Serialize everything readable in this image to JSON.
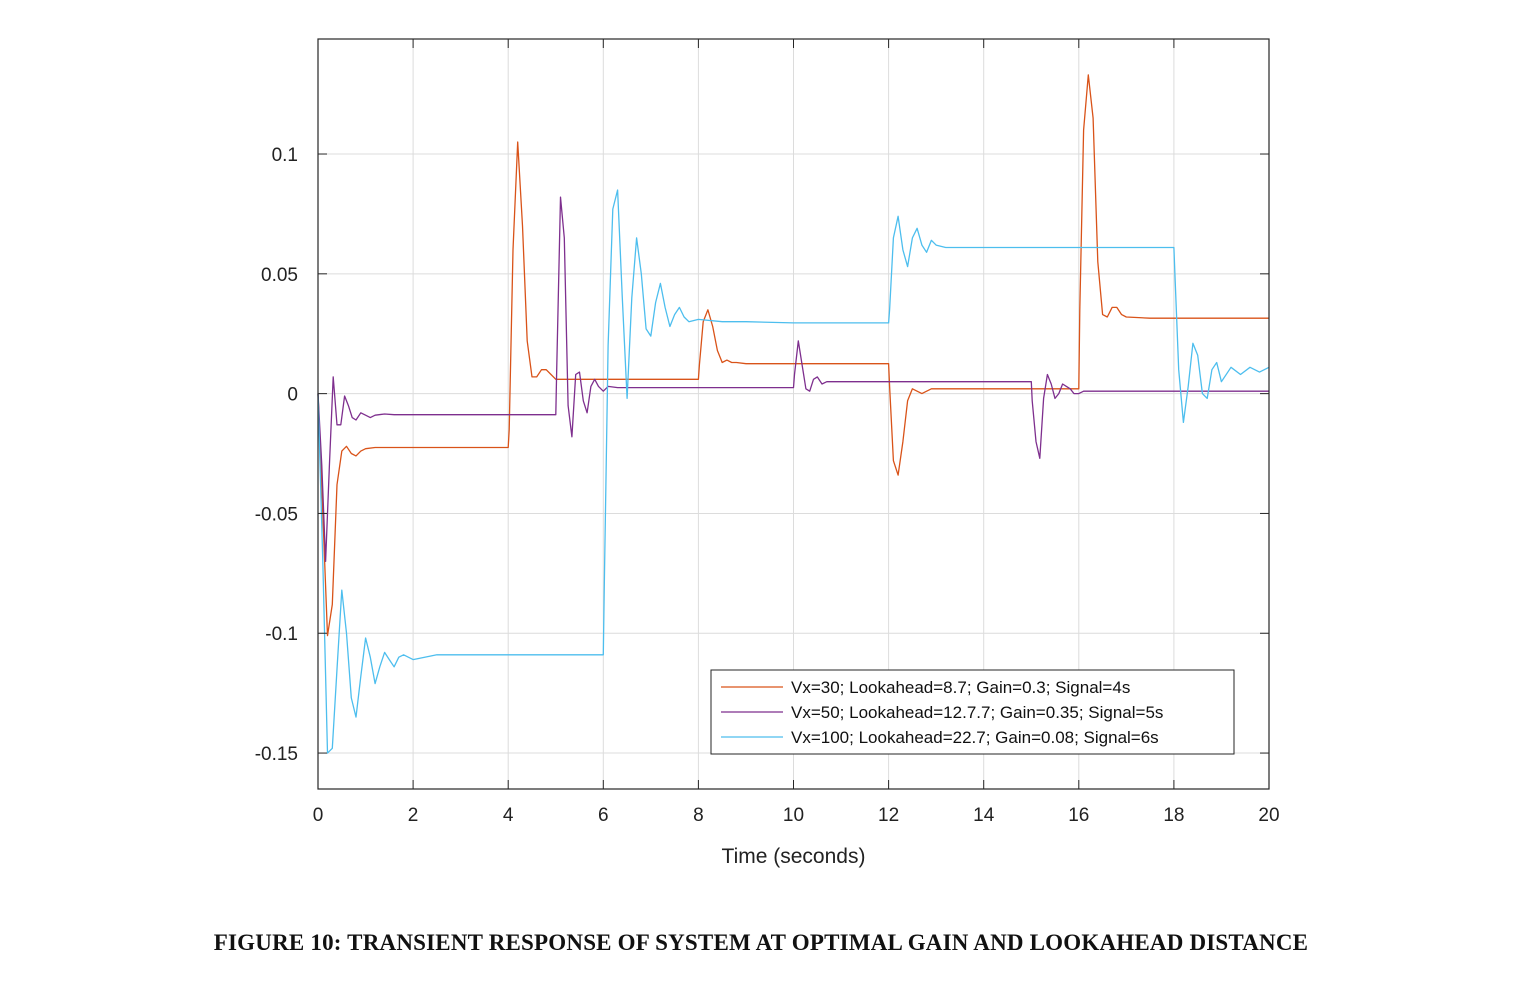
{
  "caption": "FIGURE 10: TRANSIENT RESPONSE OF SYSTEM AT OPTIMAL GAIN AND LOOKAHEAD DISTANCE",
  "chart_data": {
    "type": "line",
    "title": "",
    "xlabel": "Time (seconds)",
    "ylabel": "",
    "xlim": [
      0,
      20
    ],
    "ylim": [
      -0.165,
      0.148
    ],
    "xticks": [
      0,
      2,
      4,
      6,
      8,
      10,
      12,
      14,
      16,
      18,
      20
    ],
    "xtick_labels": [
      "0",
      "2",
      "4",
      "6",
      "8",
      "10",
      "12",
      "14",
      "16",
      "18",
      "20"
    ],
    "yticks": [
      -0.15,
      -0.1,
      -0.05,
      0,
      0.05,
      0.1
    ],
    "ytick_labels": [
      "-0.15",
      "-0.1",
      "-0.05",
      "0",
      "0.05",
      "0.1"
    ],
    "grid": true,
    "legend_position": "bottom-right",
    "series": [
      {
        "name": "Vx=30; Lookahead=8.7; Gain=0.3; Signal=4s",
        "color": "#D95319",
        "x": [
          0,
          0.1,
          0.2,
          0.3,
          0.4,
          0.5,
          0.6,
          0.7,
          0.8,
          0.9,
          1.0,
          1.2,
          1.5,
          2,
          3,
          4,
          4.02,
          4.1,
          4.2,
          4.3,
          4.4,
          4.5,
          4.6,
          4.7,
          4.8,
          4.9,
          5.0,
          5.2,
          5.5,
          6,
          7,
          8,
          8.02,
          8.1,
          8.2,
          8.3,
          8.4,
          8.5,
          8.6,
          8.7,
          8.8,
          9,
          9.5,
          10,
          11,
          12,
          12.02,
          12.1,
          12.2,
          12.3,
          12.4,
          12.5,
          12.6,
          12.7,
          12.8,
          12.9,
          13.0,
          13.5,
          14,
          15,
          16,
          16.02,
          16.1,
          16.2,
          16.3,
          16.4,
          16.5,
          16.6,
          16.7,
          16.8,
          16.9,
          17.0,
          17.5,
          18,
          19,
          20
        ],
        "y": [
          0,
          -0.05,
          -0.101,
          -0.088,
          -0.038,
          -0.024,
          -0.022,
          -0.025,
          -0.026,
          -0.024,
          -0.023,
          -0.0225,
          -0.0225,
          -0.0225,
          -0.0225,
          -0.0225,
          -0.015,
          0.06,
          0.105,
          0.07,
          0.022,
          0.007,
          0.007,
          0.01,
          0.01,
          0.008,
          0.006,
          0.006,
          0.006,
          0.006,
          0.006,
          0.006,
          0.012,
          0.03,
          0.035,
          0.028,
          0.018,
          0.013,
          0.014,
          0.013,
          0.013,
          0.0125,
          0.0125,
          0.0125,
          0.0125,
          0.0125,
          0.003,
          -0.028,
          -0.034,
          -0.02,
          -0.003,
          0.002,
          0.001,
          0,
          0.001,
          0.002,
          0.002,
          0.002,
          0.002,
          0.002,
          0.002,
          0.035,
          0.11,
          0.133,
          0.115,
          0.055,
          0.033,
          0.032,
          0.036,
          0.036,
          0.033,
          0.032,
          0.0315,
          0.0315,
          0.0315,
          0.0315
        ]
      },
      {
        "name": "Vx=50; Lookahead=12.7.7; Gain=0.35; Signal=5s",
        "color": "#7E2F8E",
        "x": [
          0,
          0.08,
          0.16,
          0.24,
          0.32,
          0.4,
          0.48,
          0.56,
          0.64,
          0.72,
          0.8,
          0.9,
          1.0,
          1.1,
          1.2,
          1.4,
          1.6,
          2,
          3,
          4,
          5,
          5.02,
          5.1,
          5.18,
          5.26,
          5.34,
          5.42,
          5.5,
          5.58,
          5.66,
          5.74,
          5.82,
          5.9,
          6.0,
          6.1,
          6.3,
          6.5,
          7,
          8,
          9,
          10,
          10.02,
          10.1,
          10.18,
          10.26,
          10.34,
          10.42,
          10.5,
          10.6,
          10.7,
          10.8,
          11,
          11.5,
          12,
          13,
          14,
          15,
          15.02,
          15.1,
          15.18,
          15.26,
          15.34,
          15.42,
          15.5,
          15.58,
          15.66,
          15.74,
          15.82,
          15.9,
          16.0,
          16.1,
          16.3,
          17,
          18,
          19,
          20
        ],
        "y": [
          0,
          -0.03,
          -0.07,
          -0.03,
          0.007,
          -0.013,
          -0.013,
          -0.001,
          -0.005,
          -0.01,
          -0.011,
          -0.008,
          -0.009,
          -0.01,
          -0.009,
          -0.0085,
          -0.0088,
          -0.0088,
          -0.0088,
          -0.0088,
          -0.0088,
          0.01,
          0.082,
          0.065,
          -0.005,
          -0.018,
          0.008,
          0.009,
          -0.003,
          -0.008,
          0.003,
          0.006,
          0.003,
          0.001,
          0.003,
          0.0025,
          0.0025,
          0.0025,
          0.0025,
          0.0025,
          0.0025,
          0.008,
          0.022,
          0.012,
          0.002,
          0.001,
          0.006,
          0.007,
          0.004,
          0.005,
          0.005,
          0.005,
          0.005,
          0.005,
          0.005,
          0.005,
          0.005,
          -0.003,
          -0.02,
          -0.027,
          -0.002,
          0.008,
          0.004,
          -0.002,
          0,
          0.004,
          0.003,
          0.002,
          0,
          0,
          0.001,
          0.001,
          0.001,
          0.001,
          0.001,
          0.001
        ]
      },
      {
        "name": "Vx=100; Lookahead=22.7; Gain=0.08; Signal=6s",
        "color": "#4DBEEE",
        "x": [
          0,
          0.1,
          0.2,
          0.3,
          0.4,
          0.5,
          0.6,
          0.7,
          0.8,
          0.9,
          1.0,
          1.1,
          1.2,
          1.3,
          1.4,
          1.5,
          1.6,
          1.7,
          1.8,
          2.0,
          2.5,
          3,
          4,
          5,
          6,
          6.02,
          6.1,
          6.2,
          6.3,
          6.4,
          6.5,
          6.6,
          6.7,
          6.8,
          6.9,
          7.0,
          7.1,
          7.2,
          7.3,
          7.4,
          7.5,
          7.6,
          7.7,
          7.8,
          8.0,
          8.5,
          9,
          10,
          11,
          12,
          12.02,
          12.1,
          12.2,
          12.3,
          12.4,
          12.5,
          12.6,
          12.7,
          12.8,
          12.9,
          13.0,
          13.2,
          13.5,
          14,
          15,
          16,
          17,
          18,
          18.02,
          18.1,
          18.2,
          18.3,
          18.4,
          18.5,
          18.6,
          18.7,
          18.8,
          18.9,
          19.0,
          19.2,
          19.4,
          19.6,
          19.8,
          20
        ],
        "y": [
          0,
          -0.07,
          -0.15,
          -0.148,
          -0.115,
          -0.082,
          -0.1,
          -0.127,
          -0.135,
          -0.118,
          -0.102,
          -0.11,
          -0.121,
          -0.114,
          -0.108,
          -0.111,
          -0.114,
          -0.11,
          -0.109,
          -0.111,
          -0.109,
          -0.109,
          -0.109,
          -0.109,
          -0.109,
          -0.08,
          0.02,
          0.077,
          0.085,
          0.04,
          -0.002,
          0.04,
          0.065,
          0.05,
          0.027,
          0.024,
          0.038,
          0.046,
          0.036,
          0.028,
          0.033,
          0.036,
          0.032,
          0.03,
          0.031,
          0.03,
          0.03,
          0.0295,
          0.0295,
          0.0295,
          0.035,
          0.065,
          0.074,
          0.06,
          0.053,
          0.065,
          0.069,
          0.062,
          0.059,
          0.064,
          0.062,
          0.061,
          0.061,
          0.061,
          0.061,
          0.061,
          0.061,
          0.061,
          0.05,
          0.01,
          -0.012,
          0.003,
          0.021,
          0.016,
          0,
          -0.002,
          0.01,
          0.013,
          0.005,
          0.011,
          0.008,
          0.011,
          0.009,
          0.011
        ]
      }
    ]
  }
}
